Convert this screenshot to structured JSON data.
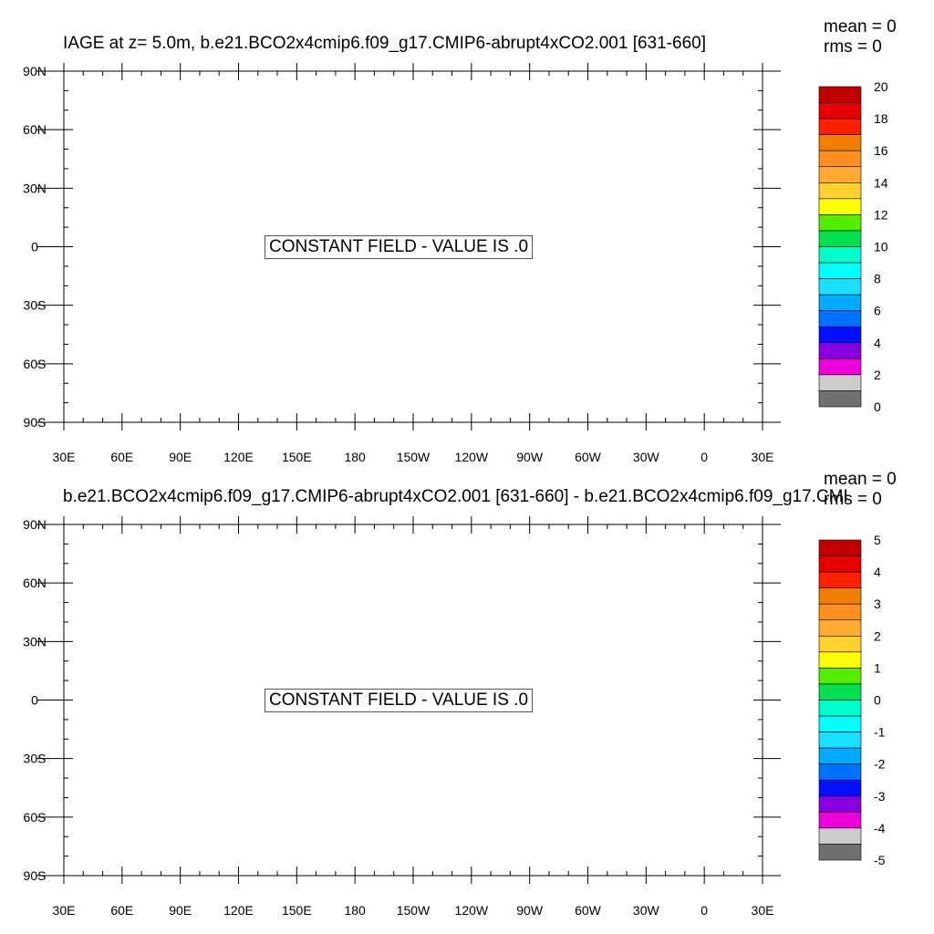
{
  "chart_data": [
    {
      "type": "heatmap",
      "title": "IAGE at z=   5.0m, b.e21.BCO2x4cmip6.f09_g17.CMIP6-abrupt4xCO2.001 [631-660]",
      "stats": {
        "mean": "mean = 0",
        "rms": "rms = 0"
      },
      "message": "CONSTANT FIELD - VALUE IS .0",
      "x_ticks": [
        "30E",
        "60E",
        "90E",
        "120E",
        "150E",
        "180",
        "150W",
        "120W",
        "90W",
        "60W",
        "30W",
        "0",
        "30E"
      ],
      "y_ticks": [
        "90N",
        "60N",
        "30N",
        "0",
        "30S",
        "60S",
        "90S"
      ],
      "xlim": [
        30,
        390
      ],
      "ylim": [
        -90,
        90
      ],
      "colorbar": {
        "labels": [
          "20",
          "18",
          "16",
          "14",
          "12",
          "10",
          "8",
          "6",
          "4",
          "2",
          "0"
        ],
        "colors": [
          "#c00000",
          "#e60000",
          "#ff2000",
          "#f07f00",
          "#ff9020",
          "#ffaa30",
          "#ffd030",
          "#ffff00",
          "#55ee00",
          "#00e050",
          "#00ffcc",
          "#00ffff",
          "#1ae0ff",
          "#00aaff",
          "#0070ff",
          "#0010ff",
          "#8800e0",
          "#ee00dd",
          "#cccccc",
          "#707070"
        ]
      }
    },
    {
      "type": "heatmap",
      "title": "b.e21.BCO2x4cmip6.f09_g17.CMIP6-abrupt4xCO2.001 [631-660] - b.e21.BCO2x4cmip6.f09_g17.CMI",
      "stats": {
        "mean": "mean = 0",
        "rms": "rms = 0"
      },
      "message": "CONSTANT FIELD - VALUE IS .0",
      "x_ticks": [
        "30E",
        "60E",
        "90E",
        "120E",
        "150E",
        "180",
        "150W",
        "120W",
        "90W",
        "60W",
        "30W",
        "0",
        "30E"
      ],
      "y_ticks": [
        "90N",
        "60N",
        "30N",
        "0",
        "30S",
        "60S",
        "90S"
      ],
      "xlim": [
        30,
        390
      ],
      "ylim": [
        -90,
        90
      ],
      "colorbar": {
        "labels": [
          "5",
          "4",
          "3",
          "2",
          "1",
          "0",
          "-1",
          "-2",
          "-3",
          "-4",
          "-5"
        ],
        "colors": [
          "#c00000",
          "#e60000",
          "#ff2000",
          "#f07f00",
          "#ff9020",
          "#ffaa30",
          "#ffd030",
          "#ffff00",
          "#55ee00",
          "#00e050",
          "#00ffcc",
          "#00ffff",
          "#1ae0ff",
          "#00aaff",
          "#0070ff",
          "#0010ff",
          "#8800e0",
          "#ee00dd",
          "#cccccc",
          "#707070"
        ]
      }
    }
  ]
}
